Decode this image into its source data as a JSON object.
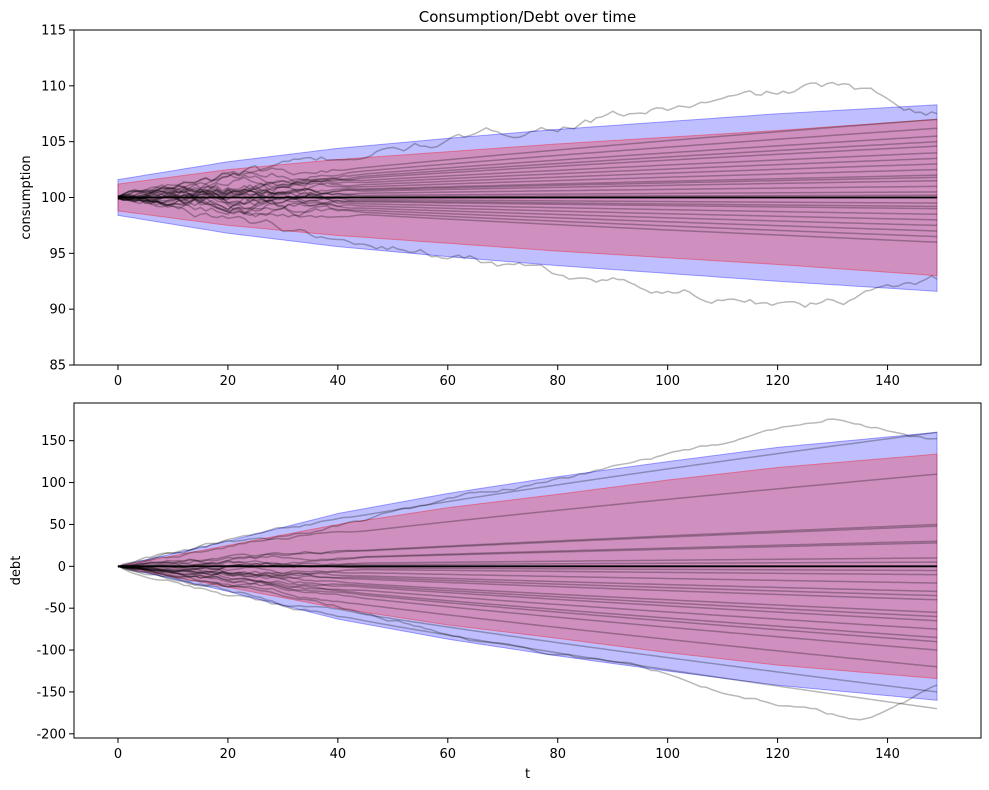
{
  "figure_title": "Consumption/Debt over time",
  "colors": {
    "band_outer": "#0000ff",
    "band_inner": "#ff0000",
    "mean_line": "#000000",
    "sample_paths": "#000000"
  },
  "chart_data": [
    {
      "type": "line",
      "title": "Consumption/Debt over time",
      "xlabel": "",
      "ylabel": "consumption",
      "xlim": [
        -8,
        157
      ],
      "ylim": [
        85,
        115
      ],
      "xticks": [
        0,
        20,
        40,
        60,
        80,
        100,
        120,
        140
      ],
      "yticks": [
        85,
        90,
        95,
        100,
        105,
        110,
        115
      ],
      "grid": false,
      "t_range": [
        0,
        149
      ],
      "mean": 100,
      "bands": [
        {
          "level": "outer",
          "color": "blue",
          "upper": [
            [
              0,
              101.6
            ],
            [
              20,
              103.2
            ],
            [
              40,
              104.4
            ],
            [
              60,
              105.3
            ],
            [
              80,
              106.1
            ],
            [
              100,
              106.8
            ],
            [
              120,
              107.5
            ],
            [
              149,
              108.3
            ]
          ],
          "lower": [
            [
              0,
              98.4
            ],
            [
              20,
              96.8
            ],
            [
              40,
              95.6
            ],
            [
              60,
              94.7
            ],
            [
              80,
              93.9
            ],
            [
              100,
              93.2
            ],
            [
              120,
              92.5
            ],
            [
              149,
              91.6
            ]
          ]
        },
        {
          "level": "inner",
          "color": "red",
          "upper": [
            [
              0,
              101.2
            ],
            [
              20,
              102.5
            ],
            [
              40,
              103.4
            ],
            [
              60,
              104.1
            ],
            [
              80,
              104.8
            ],
            [
              100,
              105.4
            ],
            [
              120,
              106.0
            ],
            [
              149,
              107.0
            ]
          ],
          "lower": [
            [
              0,
              98.8
            ],
            [
              20,
              97.5
            ],
            [
              40,
              96.6
            ],
            [
              60,
              95.9
            ],
            [
              80,
              95.2
            ],
            [
              100,
              94.6
            ],
            [
              120,
              94.0
            ],
            [
              149,
              93.0
            ]
          ]
        }
      ],
      "sample_paths": {
        "count": 25,
        "start": [
          100,
          100
        ],
        "end_values": [
          107.0,
          106.2,
          105.5,
          105.0,
          104.0,
          103.5,
          103.0,
          102.5,
          102.0,
          101.5,
          101.0,
          100.5,
          100.0,
          99.5,
          99.0,
          98.5,
          98.0,
          97.5,
          97.0,
          96.5,
          96.0,
          100.2,
          101.8,
          99.2,
          104.6
        ],
        "extremes": {
          "max": [
            [
              130,
              110.0
            ],
            [
              140,
              109.5
            ]
          ],
          "min": [
            [
              125,
              90.0
            ],
            [
              130,
              90.3
            ]
          ]
        }
      }
    },
    {
      "type": "line",
      "title": "",
      "xlabel": "t",
      "ylabel": "debt",
      "xlim": [
        -8,
        157
      ],
      "ylim": [
        -205,
        195
      ],
      "xticks": [
        0,
        20,
        40,
        60,
        80,
        100,
        120,
        140
      ],
      "yticks": [
        -200,
        -150,
        -100,
        -50,
        0,
        50,
        100,
        150
      ],
      "grid": false,
      "t_range": [
        0,
        149
      ],
      "mean": 0,
      "bands": [
        {
          "level": "outer",
          "color": "blue",
          "upper": [
            [
              0,
              0
            ],
            [
              20,
              30
            ],
            [
              40,
              63
            ],
            [
              60,
              87
            ],
            [
              80,
              107
            ],
            [
              100,
              125
            ],
            [
              120,
              142
            ],
            [
              149,
              160
            ]
          ],
          "lower": [
            [
              0,
              0
            ],
            [
              20,
              -30
            ],
            [
              40,
              -63
            ],
            [
              60,
              -87
            ],
            [
              80,
              -107
            ],
            [
              100,
              -125
            ],
            [
              120,
              -142
            ],
            [
              149,
              -160
            ]
          ]
        },
        {
          "level": "inner",
          "color": "red",
          "upper": [
            [
              0,
              0
            ],
            [
              20,
              25
            ],
            [
              40,
              50
            ],
            [
              60,
              70
            ],
            [
              80,
              86
            ],
            [
              100,
              103
            ],
            [
              120,
              118
            ],
            [
              149,
              134
            ]
          ],
          "lower": [
            [
              0,
              0
            ],
            [
              20,
              -25
            ],
            [
              40,
              -50
            ],
            [
              60,
              -70
            ],
            [
              80,
              -86
            ],
            [
              100,
              -103
            ],
            [
              120,
              -118
            ],
            [
              149,
              -134
            ]
          ]
        }
      ],
      "sample_paths": {
        "count": 25,
        "start": [
          0,
          0
        ],
        "end_values": [
          160,
          110,
          50,
          48,
          30,
          28,
          10,
          5,
          0,
          -5,
          -10,
          -20,
          -30,
          -35,
          -40,
          -55,
          -60,
          -65,
          -75,
          -85,
          -90,
          -100,
          -120,
          -150,
          -170
        ],
        "extremes": {
          "max": [
            [
              130,
              175
            ],
            [
              136,
              178
            ]
          ],
          "min": [
            [
              135,
              -185
            ],
            [
              140,
              -186
            ]
          ]
        }
      }
    }
  ]
}
